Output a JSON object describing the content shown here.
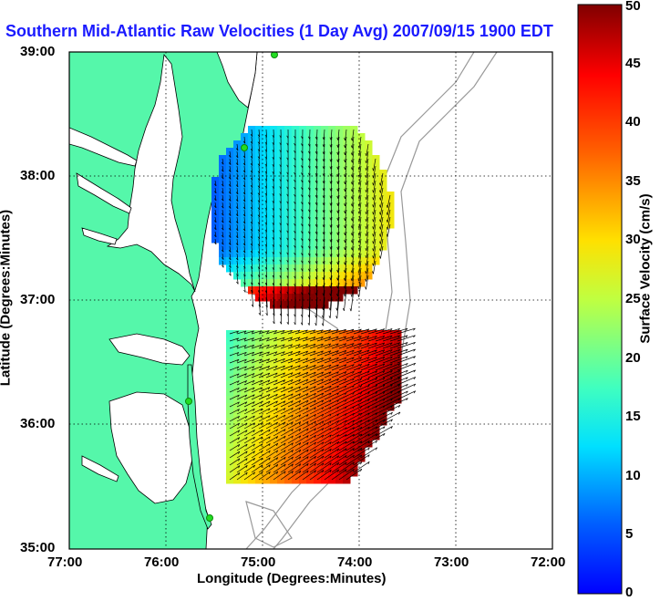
{
  "title": "Southern Mid-Atlantic Raw Velocities (1 Day Avg) 2007/09/15 1900 EDT",
  "axes": {
    "xlabel": "Longitude (Degrees:Minutes)",
    "ylabel": "Latitude (Degrees:Minutes)",
    "x_ticks": [
      "77:00",
      "76:00",
      "75:00",
      "74:00",
      "73:00",
      "72:00"
    ],
    "y_ticks": [
      "39:00",
      "38:00",
      "37:00",
      "36:00",
      "35:00"
    ]
  },
  "colorbar": {
    "label": "Surface Velocity (cm/s)",
    "min": 0,
    "max": 50,
    "ticks": [
      "0",
      "5",
      "10",
      "15",
      "20",
      "25",
      "30",
      "35",
      "40",
      "45",
      "50"
    ]
  },
  "colors": {
    "land": "#55f7aa",
    "water": "#ffffff",
    "title": "#1a1aff",
    "station": "#22dd22"
  },
  "map": {
    "lon_range": [
      -77,
      -72
    ],
    "lat_range": [
      35,
      39
    ],
    "grid": true,
    "stations": [
      {
        "lon": -74.9,
        "lat": 39.0
      },
      {
        "lon": -75.1,
        "lat": 38.2
      },
      {
        "lon": -75.6,
        "lat": 36.2
      },
      {
        "lon": -75.5,
        "lat": 35.25
      }
    ]
  }
}
